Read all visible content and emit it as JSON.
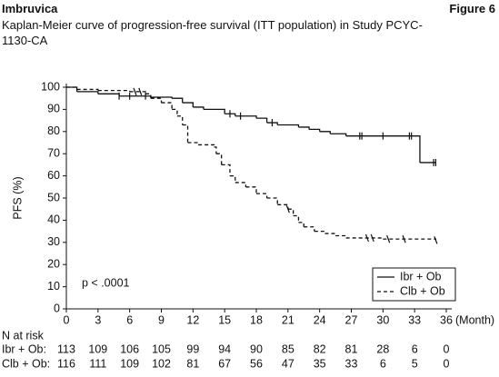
{
  "chart_data": {
    "type": "step",
    "header": "Imbruvica",
    "figure": "Figure 6",
    "title": "Kaplan-Meier curve of progression-free survival (ITT population) in Study PCYC-1130-CA",
    "ylabel": "PFS (%)",
    "xlabel": "(Month)",
    "annotation": "p < .0001",
    "xlim": [
      0,
      36
    ],
    "xticks": [
      0,
      3,
      6,
      9,
      12,
      15,
      18,
      21,
      24,
      27,
      30,
      33,
      36
    ],
    "ylim": [
      0,
      100
    ],
    "yticks": [
      0,
      10,
      20,
      30,
      40,
      50,
      60,
      70,
      80,
      90,
      100
    ],
    "series": [
      {
        "name": "Ibr + Ob",
        "color": "#111111",
        "dashed": false,
        "x": [
          0,
          1,
          3,
          5,
          8,
          10,
          11,
          12,
          13,
          15,
          16,
          18,
          19,
          20,
          22,
          23,
          24,
          25,
          26.5,
          33.5,
          35
        ],
        "values": [
          100,
          98,
          97,
          96,
          95.5,
          95,
          93,
          91,
          90,
          88,
          87,
          86,
          84,
          83,
          82,
          81,
          80,
          79,
          78,
          66,
          66
        ],
        "censored": [
          5,
          6,
          7.5,
          15.5,
          16.5,
          19.5,
          27.8,
          28,
          30,
          32.5,
          32.7,
          34.8,
          35
        ]
      },
      {
        "name": "Clb + Ob",
        "color": "#111111",
        "dashed": true,
        "x": [
          0,
          1,
          3,
          6,
          7.5,
          8,
          9,
          10,
          10.5,
          11,
          11.5,
          12.5,
          14,
          14.2,
          14.7,
          15.5,
          16,
          17,
          18,
          19,
          20,
          21,
          21.5,
          22,
          22.5,
          23.5,
          24.5,
          25.5,
          26.5,
          30,
          35
        ],
        "values": [
          100,
          99,
          98.5,
          98,
          97,
          95,
          93,
          90,
          87,
          83,
          75,
          74,
          73,
          70,
          65,
          60,
          57,
          55,
          52,
          50,
          47,
          45,
          42,
          39,
          37,
          35,
          34,
          33,
          32,
          31.5,
          31
        ],
        "censored": [
          6.5,
          7,
          21,
          28.5,
          29,
          30.5,
          32,
          35
        ]
      }
    ],
    "legend": "bottom-right",
    "at_risk": {
      "title": "N at risk",
      "rows": [
        {
          "name": "Ibr + Ob:",
          "values": [
            113,
            109,
            106,
            105,
            99,
            94,
            90,
            85,
            82,
            81,
            28,
            6,
            0
          ]
        },
        {
          "name": "Clb + Ob:",
          "values": [
            116,
            111,
            109,
            102,
            81,
            67,
            56,
            47,
            35,
            33,
            6,
            5,
            0
          ]
        }
      ]
    }
  }
}
